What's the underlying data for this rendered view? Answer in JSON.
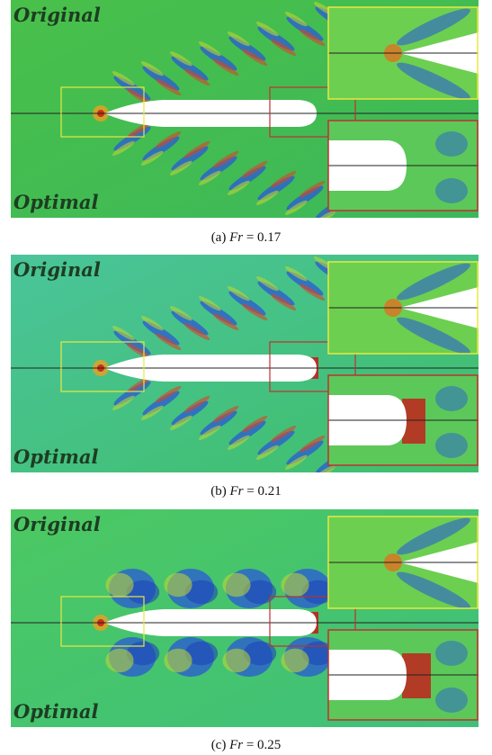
{
  "panels": [
    {
      "label_top": "Original",
      "label_bottom": "Optimal",
      "caption": {
        "tag": "(a)",
        "variable": "Fr",
        "equals": "= 0.17"
      }
    },
    {
      "label_top": "Original",
      "label_bottom": "Optimal",
      "caption": {
        "tag": "(b)",
        "variable": "Fr",
        "equals": "= 0.21"
      }
    },
    {
      "label_top": "Original",
      "label_bottom": "Optimal",
      "caption": {
        "tag": "(c)",
        "variable": "Fr",
        "equals": "= 0.25"
      }
    }
  ]
}
